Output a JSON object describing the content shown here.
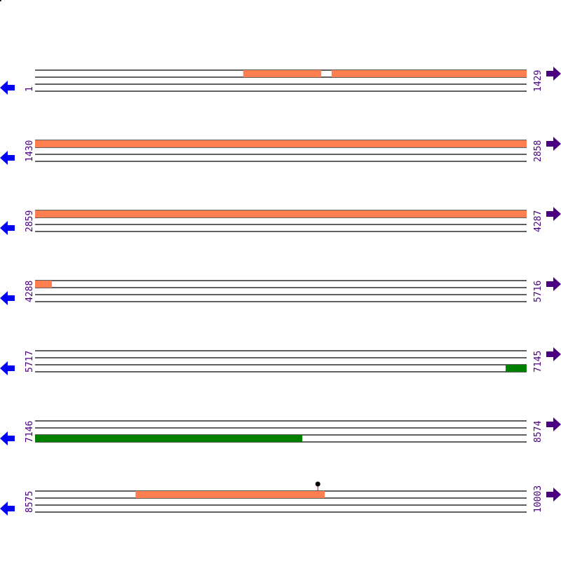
{
  "rows": [
    {
      "start": "1",
      "end": "1429"
    },
    {
      "start": "1430",
      "end": "2858"
    },
    {
      "start": "2859",
      "end": "4287"
    },
    {
      "start": "4288",
      "end": "5716"
    },
    {
      "start": "5717",
      "end": "7145"
    },
    {
      "start": "7146",
      "end": "8574"
    },
    {
      "start": "8575",
      "end": "10003"
    }
  ],
  "bp_per_row": 1429,
  "features": [
    {
      "track": 1,
      "from": 606,
      "to": 833,
      "color": "#ff7f50"
    },
    {
      "track": 1,
      "from": 863,
      "to": 4337,
      "color": "#ff7f50"
    },
    {
      "track": 3,
      "from": 7085,
      "to": 7923,
      "color": "#008000"
    },
    {
      "track": 1,
      "from": 8867,
      "to": 9417,
      "color": "#ff7f50"
    }
  ],
  "markers": [
    {
      "position": 9397,
      "color": "#000000",
      "stem_color": "#ff0000"
    }
  ],
  "colors": {
    "label": "#4b0082",
    "left_arrow": "#0000ff",
    "right_arrow": "#4b0082",
    "line": "#000000"
  },
  "icons": {
    "left": "arrow-left-icon",
    "right": "arrow-right-icon"
  }
}
